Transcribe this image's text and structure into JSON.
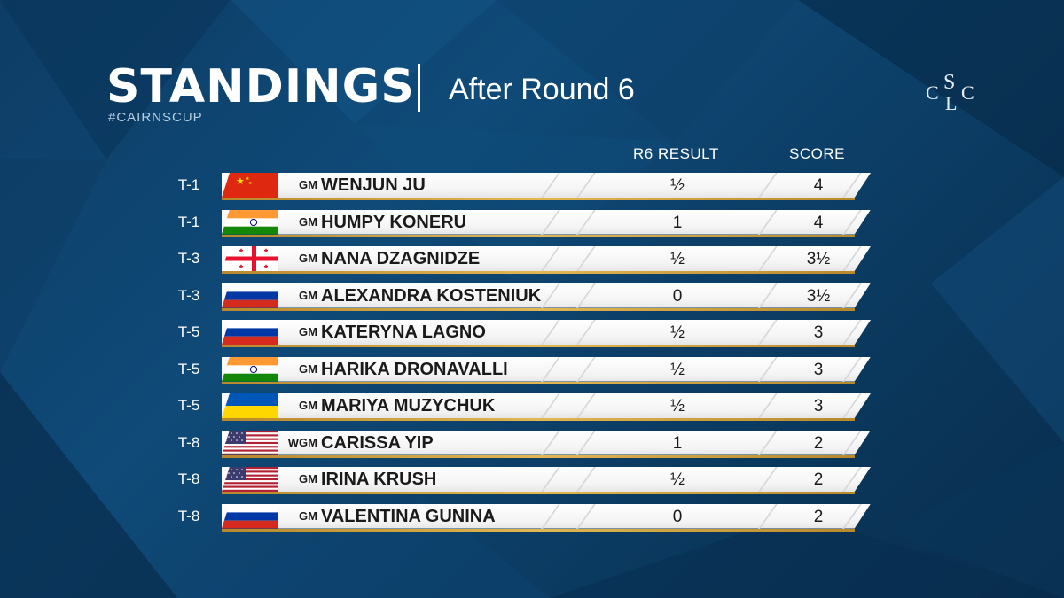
{
  "header": {
    "title": "STANDINGS",
    "subtitle": "After Round 6",
    "hashtag": "#CAIRNSCUP",
    "logo_letters": [
      "C",
      "S",
      "L",
      "C"
    ]
  },
  "columns": {
    "result": "R6 RESULT",
    "score": "SCORE"
  },
  "colors": {
    "background": "#0f4a78",
    "row_bar": "#ffffff",
    "gold_accent": "#d4a843"
  },
  "standings": [
    {
      "rank": "T-1",
      "flag": "china-flag-icon",
      "title": "GM",
      "name": "WENJUN JU",
      "result": "½",
      "score": "4"
    },
    {
      "rank": "T-1",
      "flag": "india-flag-icon",
      "title": "GM",
      "name": "HUMPY KONERU",
      "result": "1",
      "score": "4"
    },
    {
      "rank": "T-3",
      "flag": "georgia-flag-icon",
      "title": "GM",
      "name": "NANA DZAGNIDZE",
      "result": "½",
      "score": "3½"
    },
    {
      "rank": "T-3",
      "flag": "russia-flag-icon",
      "title": "GM",
      "name": "ALEXANDRA KOSTENIUK",
      "result": "0",
      "score": "3½"
    },
    {
      "rank": "T-5",
      "flag": "russia-flag-icon",
      "title": "GM",
      "name": "KATERYNA LAGNO",
      "result": "½",
      "score": "3"
    },
    {
      "rank": "T-5",
      "flag": "india-flag-icon",
      "title": "GM",
      "name": "HARIKA DRONAVALLI",
      "result": "½",
      "score": "3"
    },
    {
      "rank": "T-5",
      "flag": "ukraine-flag-icon",
      "title": "GM",
      "name": "MARIYA MUZYCHUK",
      "result": "½",
      "score": "3"
    },
    {
      "rank": "T-8",
      "flag": "usa-flag-icon",
      "title": "WGM",
      "name": "CARISSA YIP",
      "result": "1",
      "score": "2"
    },
    {
      "rank": "T-8",
      "flag": "usa-flag-icon",
      "title": "GM",
      "name": "IRINA KRUSH",
      "result": "½",
      "score": "2"
    },
    {
      "rank": "T-8",
      "flag": "russia-flag-icon",
      "title": "GM",
      "name": "VALENTINA GUNINA",
      "result": "0",
      "score": "2"
    }
  ]
}
